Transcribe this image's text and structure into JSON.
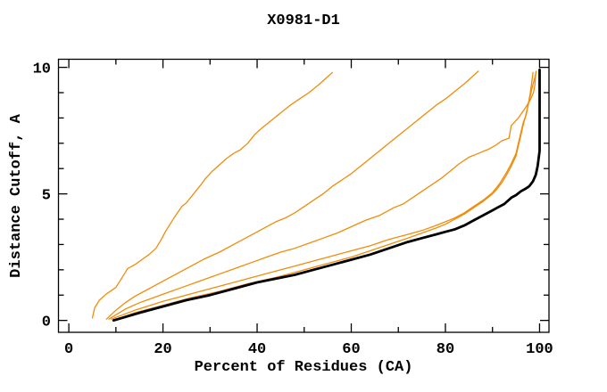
{
  "title": "X0981-D1",
  "chart_data": {
    "type": "line",
    "title": "X0981-D1",
    "xlabel": "Percent of Residues (CA)",
    "ylabel": "Distance Cutoff, A",
    "xlim": [
      -2.2,
      102
    ],
    "ylim": [
      -0.47,
      10.32
    ],
    "x_ticks_major": [
      0,
      20,
      40,
      60,
      80,
      100
    ],
    "x_ticks_minor": [
      10,
      30,
      50,
      70,
      90
    ],
    "x_tick_labels": [
      "0",
      "20",
      "40",
      "60",
      "80",
      "100"
    ],
    "y_ticks_major": [
      0,
      5,
      10
    ],
    "y_ticks_minor": [
      1,
      2,
      3,
      4,
      6,
      7,
      8,
      9
    ],
    "y_tick_labels": [
      "0",
      "5",
      "10"
    ],
    "grid": false,
    "legend": "none",
    "axis_color": "#000000",
    "curve_color_orange": "#F08C0A",
    "curve_color_black": "#000000",
    "series": [
      {
        "name": "orange-curve-1",
        "color": "#F08C0A",
        "width": 1.3,
        "points": [
          [
            5,
            0.1
          ],
          [
            5.5,
            0.5
          ],
          [
            6.5,
            0.8
          ],
          [
            8,
            1.05
          ],
          [
            10,
            1.3
          ],
          [
            11,
            1.6
          ],
          [
            12,
            1.9
          ],
          [
            12.5,
            2.05
          ],
          [
            14,
            2.2
          ],
          [
            15.5,
            2.4
          ],
          [
            17,
            2.6
          ],
          [
            18.5,
            2.85
          ],
          [
            19.5,
            3.15
          ],
          [
            20.5,
            3.5
          ],
          [
            21.5,
            3.8
          ],
          [
            22.5,
            4.1
          ],
          [
            24,
            4.5
          ],
          [
            25,
            4.65
          ],
          [
            26.5,
            5.0
          ],
          [
            28,
            5.35
          ],
          [
            29,
            5.6
          ],
          [
            30.5,
            5.9
          ],
          [
            32,
            6.15
          ],
          [
            33.5,
            6.4
          ],
          [
            35,
            6.6
          ],
          [
            36.5,
            6.75
          ],
          [
            38,
            7.0
          ],
          [
            39.5,
            7.35
          ],
          [
            41,
            7.6
          ],
          [
            43,
            7.9
          ],
          [
            45,
            8.2
          ],
          [
            47,
            8.5
          ],
          [
            49,
            8.75
          ],
          [
            51,
            9.0
          ],
          [
            53,
            9.3
          ],
          [
            54.5,
            9.55
          ],
          [
            56,
            9.8
          ]
        ]
      },
      {
        "name": "orange-curve-2",
        "color": "#F08C0A",
        "width": 1.3,
        "points": [
          [
            8,
            0.05
          ],
          [
            10,
            0.4
          ],
          [
            12,
            0.7
          ],
          [
            14,
            0.95
          ],
          [
            16,
            1.15
          ],
          [
            18,
            1.35
          ],
          [
            20,
            1.55
          ],
          [
            23,
            1.85
          ],
          [
            26,
            2.15
          ],
          [
            29,
            2.45
          ],
          [
            32,
            2.7
          ],
          [
            35,
            3.0
          ],
          [
            38,
            3.3
          ],
          [
            41,
            3.6
          ],
          [
            44,
            3.9
          ],
          [
            46,
            4.05
          ],
          [
            48,
            4.25
          ],
          [
            50,
            4.5
          ],
          [
            52,
            4.75
          ],
          [
            54,
            5.0
          ],
          [
            56,
            5.3
          ],
          [
            58,
            5.55
          ],
          [
            60,
            5.8
          ],
          [
            62,
            6.1
          ],
          [
            64,
            6.4
          ],
          [
            66,
            6.7
          ],
          [
            68,
            7.0
          ],
          [
            70,
            7.3
          ],
          [
            72,
            7.6
          ],
          [
            74,
            7.9
          ],
          [
            76,
            8.2
          ],
          [
            78,
            8.5
          ],
          [
            80,
            8.75
          ],
          [
            82,
            9.05
          ],
          [
            84,
            9.35
          ],
          [
            85.5,
            9.6
          ],
          [
            87,
            9.85
          ]
        ]
      },
      {
        "name": "orange-curve-3",
        "color": "#F08C0A",
        "width": 1.3,
        "points": [
          [
            8.5,
            0.05
          ],
          [
            12,
            0.45
          ],
          [
            15,
            0.7
          ],
          [
            18,
            0.9
          ],
          [
            21,
            1.1
          ],
          [
            24,
            1.3
          ],
          [
            27,
            1.5
          ],
          [
            30,
            1.7
          ],
          [
            33,
            1.9
          ],
          [
            36,
            2.1
          ],
          [
            39,
            2.3
          ],
          [
            42,
            2.5
          ],
          [
            45,
            2.7
          ],
          [
            48,
            2.85
          ],
          [
            51,
            3.05
          ],
          [
            54,
            3.25
          ],
          [
            57,
            3.45
          ],
          [
            60,
            3.7
          ],
          [
            63,
            3.95
          ],
          [
            66,
            4.15
          ],
          [
            69,
            4.45
          ],
          [
            71,
            4.6
          ],
          [
            73,
            4.85
          ],
          [
            75,
            5.1
          ],
          [
            77,
            5.35
          ],
          [
            79,
            5.6
          ],
          [
            81,
            5.9
          ],
          [
            83,
            6.2
          ],
          [
            85,
            6.45
          ],
          [
            87,
            6.6
          ],
          [
            89,
            6.75
          ],
          [
            90.5,
            6.9
          ],
          [
            92,
            7.1
          ],
          [
            93.5,
            7.2
          ],
          [
            94,
            7.7
          ],
          [
            95.5,
            8.0
          ],
          [
            97,
            8.4
          ],
          [
            98,
            8.7
          ],
          [
            98.7,
            9.0
          ],
          [
            99,
            9.3
          ],
          [
            99.2,
            9.8
          ]
        ]
      },
      {
        "name": "orange-curve-4",
        "color": "#F08C0A",
        "width": 1.3,
        "points": [
          [
            9,
            0.05
          ],
          [
            14,
            0.4
          ],
          [
            20,
            0.75
          ],
          [
            26,
            1.05
          ],
          [
            32,
            1.35
          ],
          [
            38,
            1.65
          ],
          [
            44,
            1.95
          ],
          [
            48,
            2.15
          ],
          [
            52,
            2.35
          ],
          [
            56,
            2.55
          ],
          [
            60,
            2.75
          ],
          [
            64,
            2.95
          ],
          [
            68,
            3.2
          ],
          [
            72,
            3.4
          ],
          [
            75,
            3.55
          ],
          [
            78,
            3.75
          ],
          [
            80,
            3.9
          ],
          [
            82,
            4.05
          ],
          [
            84,
            4.25
          ],
          [
            86,
            4.5
          ],
          [
            88,
            4.75
          ],
          [
            90,
            5.05
          ],
          [
            91.5,
            5.4
          ],
          [
            93,
            5.85
          ],
          [
            94,
            6.2
          ],
          [
            95,
            6.6
          ],
          [
            95.5,
            7.0
          ],
          [
            96,
            7.4
          ],
          [
            96.5,
            7.8
          ],
          [
            97.2,
            8.15
          ],
          [
            97.6,
            8.55
          ],
          [
            98,
            8.95
          ],
          [
            98.3,
            9.35
          ],
          [
            98.6,
            9.8
          ]
        ]
      },
      {
        "name": "orange-curve-5",
        "color": "#F08C0A",
        "width": 1.3,
        "points": [
          [
            9.5,
            0.0
          ],
          [
            14,
            0.3
          ],
          [
            20,
            0.6
          ],
          [
            26,
            0.9
          ],
          [
            32,
            1.15
          ],
          [
            38,
            1.45
          ],
          [
            44,
            1.7
          ],
          [
            48,
            1.9
          ],
          [
            52,
            2.1
          ],
          [
            56,
            2.3
          ],
          [
            60,
            2.5
          ],
          [
            64,
            2.75
          ],
          [
            68,
            3.0
          ],
          [
            72,
            3.25
          ],
          [
            75,
            3.45
          ],
          [
            78,
            3.65
          ],
          [
            80,
            3.8
          ],
          [
            82,
            4.0
          ],
          [
            84,
            4.2
          ],
          [
            86,
            4.45
          ],
          [
            88,
            4.7
          ],
          [
            90,
            5.0
          ],
          [
            91,
            5.2
          ],
          [
            92,
            5.45
          ],
          [
            93,
            5.75
          ],
          [
            94,
            6.1
          ],
          [
            95,
            6.5
          ],
          [
            95.5,
            6.9
          ],
          [
            96,
            7.3
          ],
          [
            96.5,
            7.7
          ],
          [
            97,
            8.05
          ],
          [
            97.5,
            8.45
          ],
          [
            98,
            8.85
          ],
          [
            98.5,
            9.25
          ],
          [
            99,
            9.6
          ],
          [
            99.3,
            9.85
          ]
        ]
      },
      {
        "name": "black-curve",
        "color": "#000000",
        "width": 2.8,
        "points": [
          [
            9.5,
            0.0
          ],
          [
            15,
            0.3
          ],
          [
            20,
            0.55
          ],
          [
            25,
            0.8
          ],
          [
            30,
            1.0
          ],
          [
            35,
            1.25
          ],
          [
            40,
            1.5
          ],
          [
            44,
            1.65
          ],
          [
            48,
            1.8
          ],
          [
            52,
            2.0
          ],
          [
            56,
            2.2
          ],
          [
            60,
            2.4
          ],
          [
            64,
            2.6
          ],
          [
            68,
            2.85
          ],
          [
            72,
            3.1
          ],
          [
            75,
            3.25
          ],
          [
            78,
            3.4
          ],
          [
            80,
            3.5
          ],
          [
            82,
            3.6
          ],
          [
            84,
            3.75
          ],
          [
            86,
            3.95
          ],
          [
            88,
            4.15
          ],
          [
            90,
            4.35
          ],
          [
            91,
            4.45
          ],
          [
            92.5,
            4.6
          ],
          [
            94,
            4.85
          ],
          [
            95,
            4.95
          ],
          [
            96,
            5.1
          ],
          [
            97,
            5.2
          ],
          [
            97.8,
            5.3
          ],
          [
            98.6,
            5.5
          ],
          [
            99.2,
            5.75
          ],
          [
            99.6,
            6.1
          ],
          [
            100,
            6.7
          ],
          [
            100,
            9.9
          ]
        ]
      }
    ]
  }
}
